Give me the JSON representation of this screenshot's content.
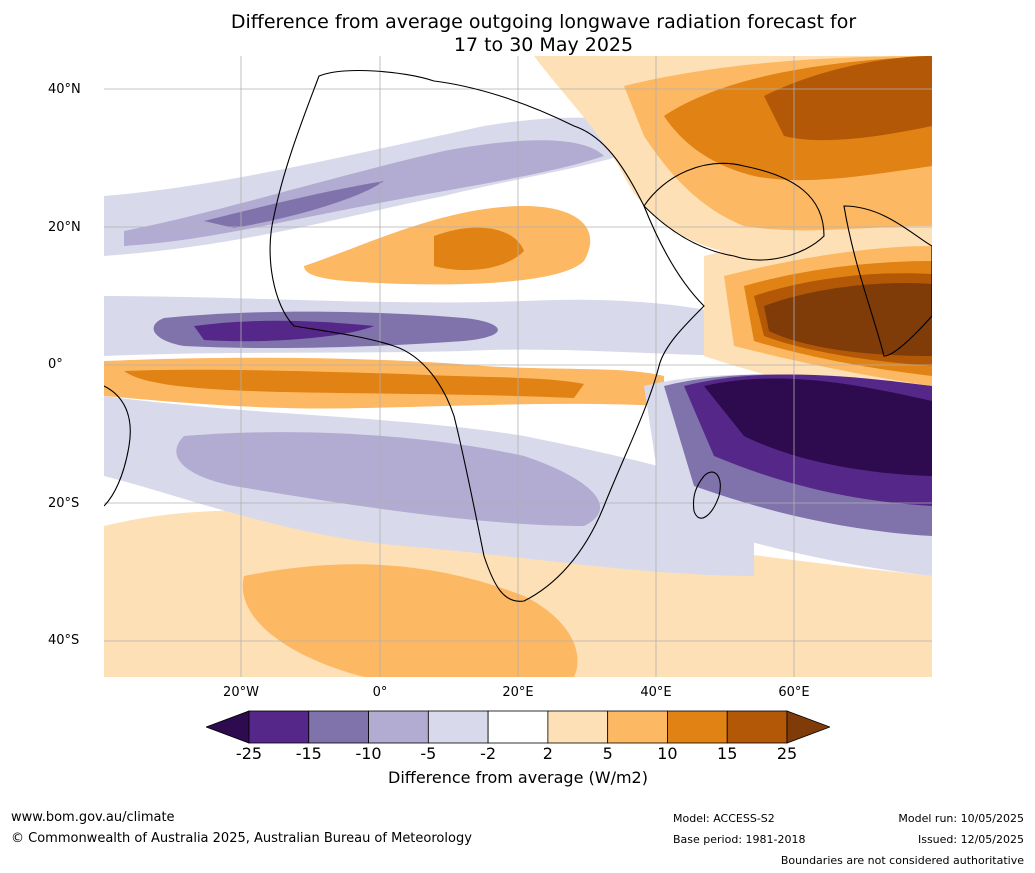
{
  "title": {
    "line1": "Difference from average outgoing longwave radiation forecast for",
    "line2": "17 to 30 May 2025"
  },
  "map": {
    "lat_labels": [
      "40°N",
      "20°N",
      "0°",
      "20°S",
      "40°S"
    ],
    "lon_labels": [
      "20°W",
      "0°",
      "20°E",
      "40°E",
      "60°E"
    ]
  },
  "colorbar": {
    "ticks": [
      "-25",
      "-15",
      "-10",
      "-5",
      "-2",
      "2",
      "5",
      "10",
      "15",
      "25"
    ],
    "colors": [
      "#2d0b4e",
      "#542788",
      "#8073ac",
      "#b2abd2",
      "#d8daeb",
      "#ffffff",
      "#fee0b6",
      "#fdb863",
      "#e08214",
      "#b35806",
      "#7f3b08"
    ],
    "label": "Difference from average (W/m2)"
  },
  "footer": {
    "website": "www.bom.gov.au/climate",
    "copyright": "© Commonwealth of Australia 2025, Australian Bureau of Meteorology",
    "model": "Model: ACCESS-S2",
    "base_period": "Base period: 1981-2018",
    "model_run": "Model run: 10/05/2025",
    "issued": "Issued: 12/05/2025",
    "disclaimer": "Boundaries are not considered authoritative"
  }
}
